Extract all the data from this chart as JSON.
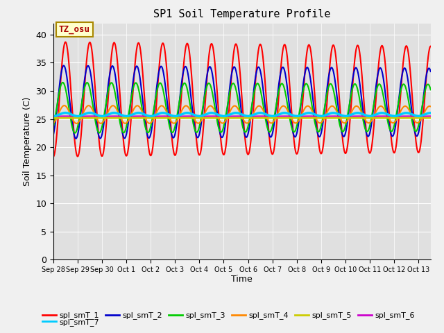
{
  "title": "SP1 Soil Temperature Profile",
  "xlabel": "Time",
  "ylabel": "Soil Temperature (C)",
  "ylim": [
    0,
    42
  ],
  "yticks": [
    0,
    5,
    10,
    15,
    20,
    25,
    30,
    35,
    40
  ],
  "num_days": 15.5,
  "timezone_label": "TZ_osu",
  "series": [
    {
      "name": "spl_smT_1",
      "color": "#ff0000",
      "amplitude": 10.2,
      "mean": 28.5,
      "phase_shift": 0.0,
      "lw": 1.5
    },
    {
      "name": "spl_smT_2",
      "color": "#0000cc",
      "amplitude": 6.5,
      "mean": 28.0,
      "phase_shift": 0.45,
      "lw": 1.5
    },
    {
      "name": "spl_smT_3",
      "color": "#00cc00",
      "amplitude": 4.5,
      "mean": 27.0,
      "phase_shift": 0.7,
      "lw": 1.5
    },
    {
      "name": "spl_smT_4",
      "color": "#ff8800",
      "amplitude": 1.6,
      "mean": 25.8,
      "phase_shift": 0.3,
      "lw": 1.5
    },
    {
      "name": "spl_smT_5",
      "color": "#cccc00",
      "amplitude": 0.01,
      "mean": 25.2,
      "phase_shift": 0.0,
      "lw": 2.0
    },
    {
      "name": "spl_smT_6",
      "color": "#cc00cc",
      "amplitude": 0.01,
      "mean": 25.5,
      "phase_shift": 0.0,
      "lw": 1.5
    },
    {
      "name": "spl_smT_7",
      "color": "#00ccff",
      "amplitude": 0.3,
      "mean": 25.8,
      "phase_shift": 0.0,
      "lw": 2.5
    }
  ],
  "x_tick_labels": [
    "Sep 28",
    "Sep 29",
    "Sep 30",
    "Oct 1",
    "Oct 2",
    "Oct 3",
    "Oct 4",
    "Oct 5",
    "Oct 6",
    "Oct 7",
    "Oct 8",
    "Oct 9",
    "Oct 10",
    "Oct 11",
    "Oct 12",
    "Oct 13"
  ],
  "bg_color": "#e0e0e0",
  "fig_color": "#f0f0f0",
  "grid_color": "#ffffff",
  "tz_text_color": "#aa0000",
  "tz_box_face": "#ffffcc",
  "tz_box_edge": "#aa8800"
}
